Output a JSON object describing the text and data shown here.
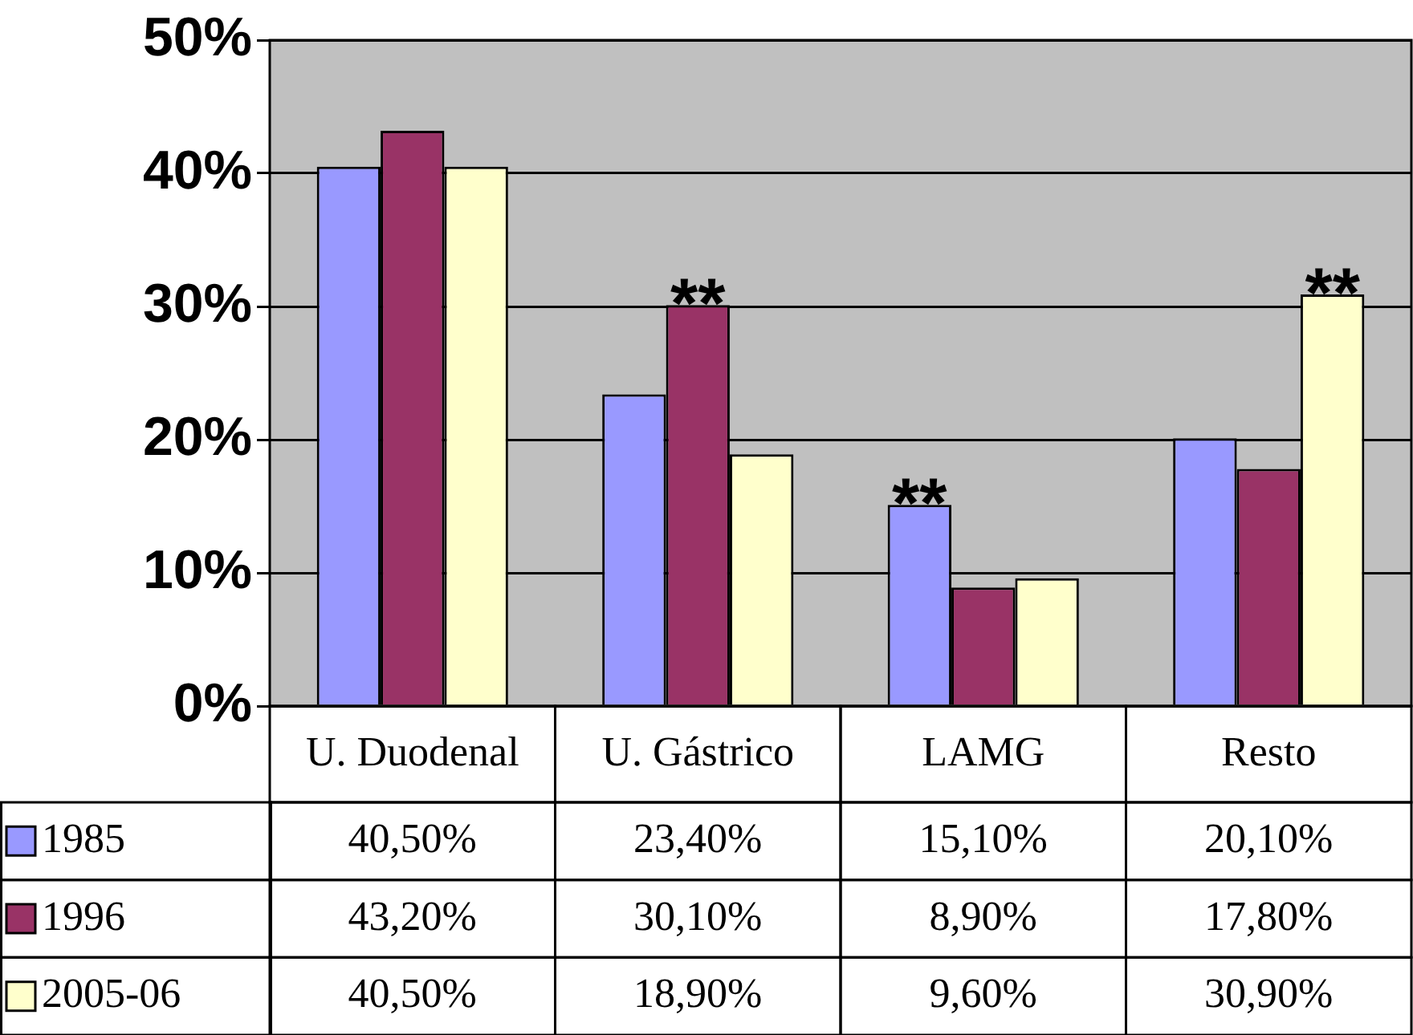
{
  "chart_data": {
    "type": "bar",
    "categories": [
      "U. Duodenal",
      "U. Gástrico",
      "LAMG",
      "Resto"
    ],
    "series": [
      {
        "name": "1985",
        "color": "#9999ff",
        "values": [
          40.5,
          23.4,
          15.1,
          20.1
        ],
        "value_labels": [
          "40,50%",
          "23,40%",
          "15,10%",
          "20,10%"
        ]
      },
      {
        "name": "1996",
        "color": "#993366",
        "values": [
          43.2,
          30.1,
          8.9,
          17.8
        ],
        "value_labels": [
          "43,20%",
          "30,10%",
          "8,90%",
          "17,80%"
        ]
      },
      {
        "name": "2005-06",
        "color": "#ffffcc",
        "values": [
          40.5,
          18.9,
          9.6,
          30.9
        ],
        "value_labels": [
          "40,50%",
          "18,90%",
          "9,60%",
          "30,90%"
        ]
      }
    ],
    "ylim": [
      0,
      50
    ],
    "yticks": [
      {
        "value": 0,
        "label": "0%"
      },
      {
        "value": 10,
        "label": "10%"
      },
      {
        "value": 20,
        "label": "20%"
      },
      {
        "value": 30,
        "label": "30%"
      },
      {
        "value": 40,
        "label": "40%"
      },
      {
        "value": 50,
        "label": "50%"
      }
    ],
    "grid": "y",
    "legend": "bottom",
    "annotations": [
      "**",
      "**",
      "**"
    ]
  }
}
